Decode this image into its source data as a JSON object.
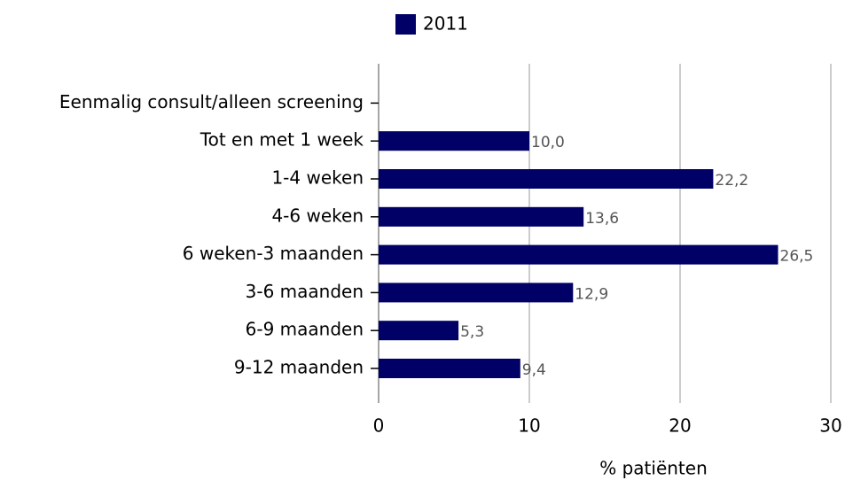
{
  "chart_data": {
    "type": "bar",
    "orientation": "horizontal",
    "categories": [
      "Eenmalig consult/alleen screening",
      "Tot en met 1 week",
      "1-4 weken",
      "4-6 weken",
      "6 weken-3 maanden",
      "3-6 maanden",
      "6-9 maanden",
      "9-12 maanden"
    ],
    "series": [
      {
        "name": "2011",
        "color": "#000066",
        "values": [
          null,
          10.0,
          22.2,
          13.6,
          26.5,
          12.9,
          5.3,
          9.4
        ],
        "value_labels": [
          null,
          "10,0",
          "22,2",
          "13,6",
          "26,5",
          "12,9",
          "5,3",
          "9,4"
        ]
      }
    ],
    "xlabel": "% patiënten",
    "xlim": [
      0,
      30
    ],
    "xticks": [
      0,
      10,
      20,
      30
    ],
    "grid": true,
    "legend": "top"
  }
}
